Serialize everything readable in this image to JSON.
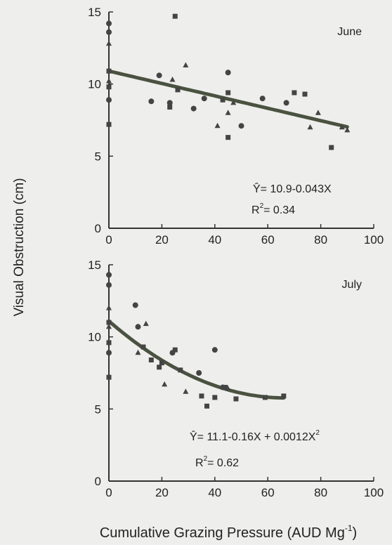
{
  "figure": {
    "ylabel": "Visual Obstruction (cm)",
    "xlabel_main": "Cumulative Grazing Pressure (AUD Mg",
    "xlabel_sup": "-1",
    "xlabel_close": ")"
  },
  "chart_data": [
    {
      "type": "scatter",
      "panel": "June",
      "xlim": [
        0,
        100
      ],
      "ylim": [
        0,
        15
      ],
      "xticks": [
        "0",
        "20",
        "40",
        "60",
        "80",
        "100"
      ],
      "yticks": [
        "0",
        "5",
        "10",
        "15"
      ],
      "grid": false,
      "equation": "Ŷ= 10.9-0.043X",
      "r2_label": "R",
      "r2_sup": "2",
      "r2_value": "= 0.34",
      "fit": {
        "model": "linear",
        "a": 10.9,
        "b": -0.043,
        "c": 0,
        "x_range": [
          0,
          90
        ]
      },
      "circles": [
        [
          0,
          14.2
        ],
        [
          0,
          13.6
        ],
        [
          0,
          8.9
        ],
        [
          19,
          10.6
        ],
        [
          16,
          8.8
        ],
        [
          23,
          8.7
        ],
        [
          36,
          9.0
        ],
        [
          32,
          8.3
        ],
        [
          45,
          10.8
        ],
        [
          50,
          7.1
        ],
        [
          58,
          9.0
        ],
        [
          67,
          8.7
        ]
      ],
      "squares": [
        [
          0,
          10.9
        ],
        [
          0,
          9.8
        ],
        [
          0,
          7.2
        ],
        [
          25,
          14.7
        ],
        [
          23,
          8.4
        ],
        [
          26,
          9.6
        ],
        [
          43,
          8.9
        ],
        [
          45,
          9.4
        ],
        [
          45,
          6.3
        ],
        [
          70,
          9.4
        ],
        [
          74,
          9.3
        ],
        [
          84,
          5.6
        ]
      ],
      "triangles": [
        [
          0,
          12.8
        ],
        [
          0,
          10.2
        ],
        [
          24,
          10.3
        ],
        [
          29,
          11.3
        ],
        [
          41,
          7.1
        ],
        [
          45,
          8.0
        ],
        [
          47,
          8.7
        ],
        [
          76,
          7.0
        ],
        [
          79,
          8.0
        ],
        [
          88,
          7.0
        ],
        [
          90,
          6.8
        ]
      ]
    },
    {
      "type": "scatter",
      "panel": "July",
      "xlim": [
        0,
        100
      ],
      "ylim": [
        0,
        15
      ],
      "xticks": [
        "0",
        "20",
        "40",
        "60",
        "80",
        "100"
      ],
      "yticks": [
        "0",
        "5",
        "10",
        "15"
      ],
      "grid": false,
      "equation": "Ŷ= 11.1-0.16X + 0.0012X",
      "eq_sup": "2",
      "r2_label": "R",
      "r2_sup": "2",
      "r2_value": "= 0.62",
      "fit": {
        "model": "quadratic",
        "a": 11.1,
        "b": -0.16,
        "c": 0.0012,
        "x_range": [
          0,
          66
        ]
      },
      "circles": [
        [
          0,
          14.3
        ],
        [
          0,
          13.6
        ],
        [
          0,
          8.9
        ],
        [
          10,
          12.2
        ],
        [
          11,
          10.7
        ],
        [
          24,
          8.9
        ],
        [
          34,
          7.5
        ],
        [
          40,
          9.1
        ],
        [
          43,
          6.5
        ]
      ],
      "squares": [
        [
          0,
          11.0
        ],
        [
          0,
          9.6
        ],
        [
          0,
          7.2
        ],
        [
          13,
          9.3
        ],
        [
          16,
          8.4
        ],
        [
          19,
          7.9
        ],
        [
          20,
          8.2
        ],
        [
          25,
          9.1
        ],
        [
          27,
          7.7
        ],
        [
          35,
          5.9
        ],
        [
          37,
          5.2
        ],
        [
          40,
          5.8
        ],
        [
          44,
          6.5
        ],
        [
          48,
          5.7
        ],
        [
          59,
          5.8
        ],
        [
          66,
          5.9
        ]
      ],
      "triangles": [
        [
          0,
          12.0
        ],
        [
          0,
          10.7
        ],
        [
          11,
          8.9
        ],
        [
          14,
          10.9
        ],
        [
          21,
          6.7
        ],
        [
          29,
          6.2
        ],
        [
          45,
          6.4
        ]
      ]
    }
  ]
}
